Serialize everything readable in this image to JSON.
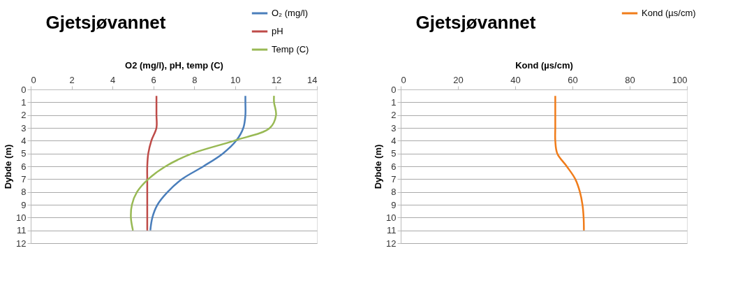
{
  "chart_data": [
    {
      "type": "line",
      "title": "Gjetsjøvannet",
      "xlabel": "O2 (mg/l), pH, temp (C)",
      "ylabel": "Dybde (m)",
      "xlim": [
        0,
        14
      ],
      "xticks": [
        0,
        2,
        4,
        6,
        8,
        10,
        12,
        14
      ],
      "ylim": [
        12,
        0
      ],
      "yticks": [
        0,
        1,
        2,
        3,
        4,
        5,
        6,
        7,
        8,
        9,
        10,
        11,
        12
      ],
      "grid": "y",
      "legend": "top right",
      "marker": "none",
      "line_style": "solid",
      "series": [
        {
          "name": "O₂ (mg/l)",
          "color": "#4a7ebb",
          "x": [
            10.5,
            10.5,
            10.5,
            10.4,
            10.05,
            9.4,
            8.45,
            7.4,
            6.7,
            6.2,
            5.95,
            5.85
          ],
          "values": [
            0.5,
            1,
            2,
            3,
            4,
            5,
            6,
            7,
            8,
            9,
            10,
            11
          ]
        },
        {
          "name": "pH",
          "color": "#be4b48",
          "x": [
            6.15,
            6.15,
            6.15,
            6.15,
            5.9,
            5.75,
            5.7,
            5.7,
            5.7,
            5.7,
            5.7,
            5.7
          ],
          "values": [
            0.5,
            1,
            2,
            3,
            4,
            5,
            6,
            7,
            8,
            9,
            10,
            11
          ]
        },
        {
          "name": "Temp (C)",
          "color": "#98b954",
          "x": [
            11.9,
            11.9,
            12.0,
            11.7,
            9.95,
            7.9,
            6.6,
            5.75,
            5.2,
            4.95,
            4.9,
            5.0
          ],
          "values": [
            0.5,
            1,
            2,
            3,
            4,
            5,
            6,
            7,
            8,
            9,
            10,
            11
          ]
        }
      ]
    },
    {
      "type": "line",
      "title": "Gjetsjøvannet",
      "xlabel": "Kond (µs/cm)",
      "ylabel": "Dybde (m)",
      "xlim": [
        0,
        100
      ],
      "xticks": [
        0,
        20,
        40,
        60,
        80,
        100
      ],
      "ylim": [
        12,
        0
      ],
      "yticks": [
        0,
        1,
        2,
        3,
        4,
        5,
        6,
        7,
        8,
        9,
        10,
        11,
        12
      ],
      "grid": "y",
      "legend": "top right",
      "marker": "none",
      "line_style": "solid",
      "series": [
        {
          "name": "Kond (µs/cm)",
          "color": "#f07c1a",
          "x": [
            54,
            54,
            54,
            54,
            54,
            54.7,
            58,
            61,
            62.6,
            63.5,
            63.9,
            64
          ],
          "values": [
            0.5,
            1,
            2,
            3,
            4,
            5,
            6,
            7,
            8,
            9,
            10,
            11
          ]
        }
      ]
    }
  ]
}
